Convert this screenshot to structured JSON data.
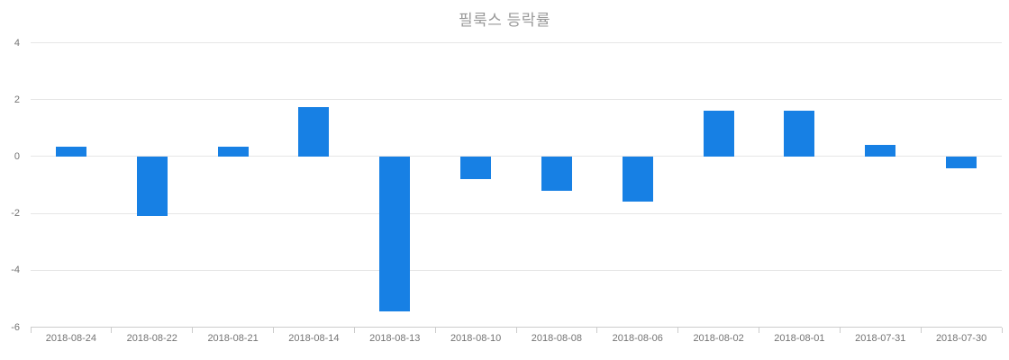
{
  "chart": {
    "colors": {
      "background": "#ffffff",
      "bar": "#1780e4",
      "grid": "#e6e6e6",
      "axis_line": "#cccccc",
      "tick": "#cccccc",
      "axis_label": "#737373",
      "title": "#999999"
    }
  },
  "chart_data": {
    "type": "bar",
    "title": "필룩스 등락률",
    "categories": [
      "2018-08-24",
      "2018-08-22",
      "2018-08-21",
      "2018-08-14",
      "2018-08-13",
      "2018-08-10",
      "2018-08-08",
      "2018-08-06",
      "2018-08-02",
      "2018-08-01",
      "2018-07-31",
      "2018-07-30"
    ],
    "values": [
      0.35,
      -2.1,
      0.35,
      1.75,
      -5.45,
      -0.8,
      -1.2,
      -1.6,
      1.6,
      1.6,
      0.4,
      -0.4
    ],
    "xlabel": "",
    "ylabel": "",
    "ylim": [
      -6,
      4
    ],
    "yticks": [
      4,
      2,
      0,
      -2,
      -4,
      -6
    ],
    "grid": true,
    "legend": false
  }
}
